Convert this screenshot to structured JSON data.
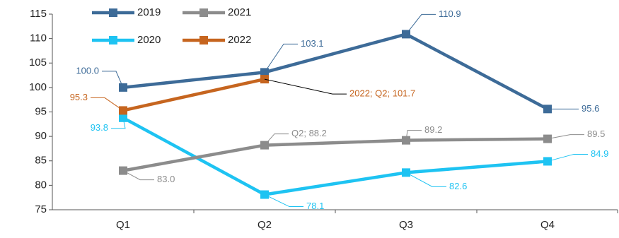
{
  "chart_data": {
    "type": "line",
    "categories": [
      "Q1",
      "Q2",
      "Q3",
      "Q4"
    ],
    "series": [
      {
        "name": "2019",
        "color": "#3d6b98",
        "values": [
          100.0,
          103.1,
          110.9,
          95.6
        ],
        "value_labels": [
          "100.0",
          "103.1",
          "110.9",
          "95.6"
        ]
      },
      {
        "name": "2020",
        "color": "#1ec3f2",
        "values": [
          93.8,
          78.1,
          82.6,
          84.9
        ],
        "value_labels": [
          "93.8",
          "78.1",
          "82.6",
          "84.9"
        ]
      },
      {
        "name": "2021",
        "color": "#8c8c8c",
        "values": [
          83.0,
          88.2,
          89.2,
          89.5
        ],
        "value_labels": [
          "83.0",
          "Q2; 88.2",
          "89.2",
          "89.5"
        ]
      },
      {
        "name": "2022",
        "color": "#c6651f",
        "values": [
          95.3,
          101.7,
          null,
          null
        ],
        "value_labels": [
          "95.3",
          "2022; Q2; 101.7",
          null,
          null
        ]
      }
    ],
    "ylim": [
      75,
      115
    ],
    "yticks": [
      75,
      80,
      85,
      90,
      95,
      100,
      105,
      110,
      115
    ],
    "grid": false,
    "legend": "upper left"
  }
}
